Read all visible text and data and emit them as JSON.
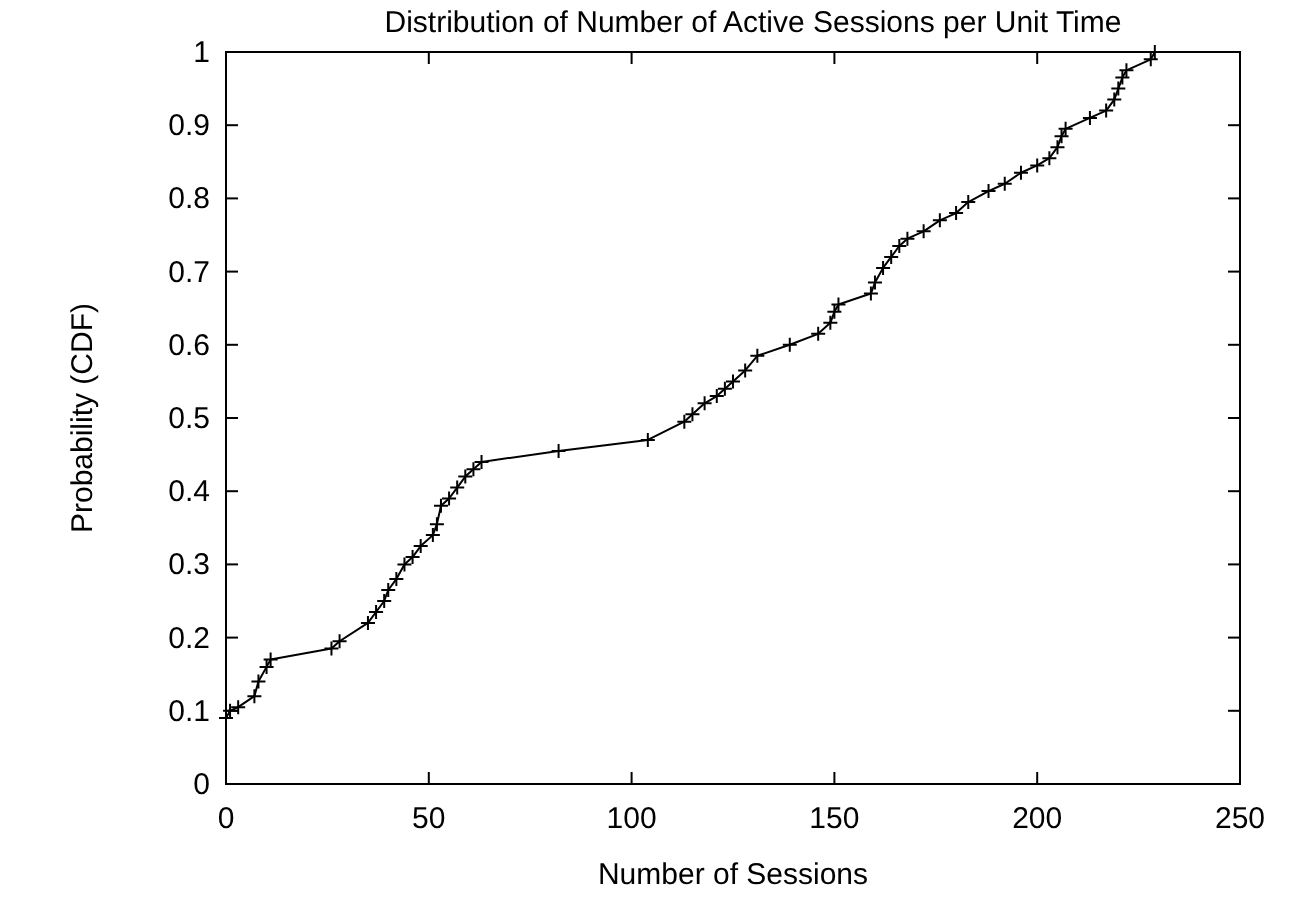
{
  "chart_data": {
    "type": "line",
    "title": "Distribution of Number of Active Sessions per Unit Time",
    "xlabel": "Number of Sessions",
    "ylabel": "Probability (CDF)",
    "xlim": [
      0,
      250
    ],
    "xticks": [
      0,
      50,
      100,
      150,
      200,
      250
    ],
    "ylim": [
      0,
      1
    ],
    "yticks": [
      0,
      0.1,
      0.2,
      0.3,
      0.4,
      0.5,
      0.6,
      0.7,
      0.8,
      0.9,
      1
    ],
    "marker": "cross",
    "grid": false,
    "series": [
      {
        "color": "#000000",
        "x": [
          0,
          1,
          3,
          7,
          8,
          10,
          11,
          26,
          28,
          35,
          37,
          39,
          40,
          42,
          44,
          46,
          48,
          51,
          52,
          53,
          55,
          57,
          59,
          61,
          63,
          82,
          104,
          113,
          115,
          118,
          121,
          123,
          125,
          128,
          131,
          139,
          146,
          149,
          150,
          151,
          159,
          160,
          162,
          164,
          166,
          168,
          172,
          176,
          180,
          183,
          188,
          192,
          196,
          200,
          203,
          205,
          206,
          207,
          213,
          217,
          219,
          220,
          221,
          222,
          228,
          229
        ],
        "values": [
          0.09,
          0.1,
          0.105,
          0.12,
          0.14,
          0.16,
          0.17,
          0.185,
          0.195,
          0.22,
          0.235,
          0.25,
          0.265,
          0.28,
          0.3,
          0.31,
          0.325,
          0.34,
          0.355,
          0.38,
          0.39,
          0.405,
          0.42,
          0.43,
          0.44,
          0.455,
          0.47,
          0.495,
          0.505,
          0.52,
          0.53,
          0.54,
          0.55,
          0.565,
          0.585,
          0.6,
          0.615,
          0.63,
          0.645,
          0.655,
          0.67,
          0.685,
          0.705,
          0.72,
          0.735,
          0.745,
          0.755,
          0.77,
          0.78,
          0.795,
          0.81,
          0.82,
          0.835,
          0.845,
          0.855,
          0.87,
          0.885,
          0.895,
          0.91,
          0.92,
          0.935,
          0.95,
          0.965,
          0.975,
          0.99,
          1.0
        ]
      }
    ]
  }
}
